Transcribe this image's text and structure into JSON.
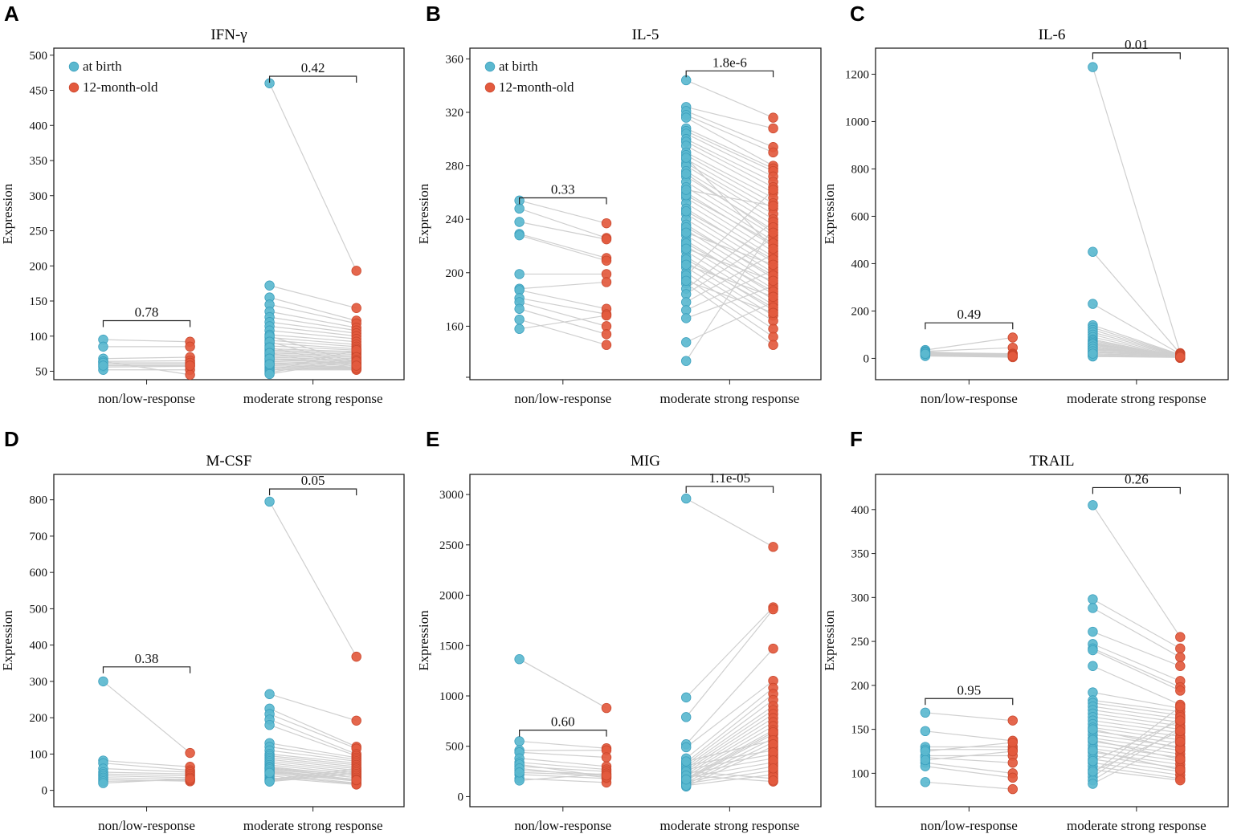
{
  "figure": {
    "colors": {
      "birth": "#5bb8cf",
      "birth_edge": "#3a9fbd",
      "month12": "#e35a3e",
      "month12_edge": "#c9462c",
      "line": "#cfcfcf"
    },
    "legend_labels": {
      "birth": "at birth",
      "month12": "12-month-old"
    }
  },
  "chart_data": [
    {
      "panel": "A",
      "type": "scatter",
      "title": "IFN-γ",
      "ylabel": "Expression",
      "ylim": [
        38,
        510
      ],
      "yticks": [
        50,
        100,
        150,
        200,
        250,
        300,
        350,
        400,
        450,
        500
      ],
      "categories": [
        "non/low-response",
        "moderate strong response"
      ],
      "legend": true,
      "axis_break": false,
      "groups": [
        {
          "pvalue": "0.78",
          "bracket_y": 122,
          "at_birth": [
            95,
            85,
            68,
            64,
            60,
            56,
            52,
            64,
            62,
            58
          ],
          "month_12": [
            92,
            85,
            70,
            65,
            60,
            57,
            52,
            45,
            62,
            58
          ]
        },
        {
          "pvalue": "0.42",
          "bracket_y": 470,
          "at_birth": [
            460,
            172,
            155,
            145,
            135,
            127,
            120,
            114,
            108,
            102,
            98,
            94,
            90,
            86,
            82,
            80,
            78,
            76,
            74,
            72,
            70,
            68,
            66,
            64,
            62,
            60,
            58,
            56,
            54,
            52,
            50,
            48,
            46,
            100,
            92,
            84,
            76,
            68,
            60
          ],
          "month_12": [
            193,
            140,
            122,
            118,
            112,
            108,
            104,
            100,
            96,
            92,
            88,
            85,
            82,
            80,
            78,
            76,
            74,
            72,
            70,
            68,
            66,
            64,
            62,
            60,
            58,
            56,
            55,
            54,
            53,
            52,
            80,
            70,
            66,
            62,
            58,
            56,
            54,
            60,
            64,
            58
          ]
        }
      ]
    },
    {
      "panel": "B",
      "type": "scatter",
      "title": "IL-5",
      "ylabel": "Expression",
      "ylim": [
        120,
        368
      ],
      "yticks": [
        160,
        200,
        240,
        280,
        320,
        360
      ],
      "categories": [
        "non/low-response",
        "moderate strong response"
      ],
      "legend": true,
      "axis_break": true,
      "groups": [
        {
          "pvalue": "0.33",
          "bracket_y": 256,
          "at_birth": [
            254,
            248,
            238,
            229,
            228,
            199,
            188,
            187,
            181,
            178,
            173,
            165,
            158
          ],
          "month_12": [
            237,
            226,
            225,
            211,
            209,
            199,
            193,
            173,
            169,
            160,
            154,
            146,
            168
          ]
        },
        {
          "pvalue": "1.8e-6",
          "bracket_y": 351,
          "at_birth": [
            344,
            324,
            321,
            318,
            316,
            308,
            306,
            304,
            300,
            298,
            295,
            290,
            288,
            285,
            282,
            280,
            276,
            272,
            268,
            264,
            260,
            256,
            252,
            248,
            244,
            240,
            236,
            232,
            228,
            224,
            220,
            216,
            212,
            208,
            204,
            200,
            196,
            192,
            188,
            184,
            178,
            172,
            166,
            148,
            134,
            258,
            246,
            234,
            222,
            210,
            198,
            262,
            274,
            286,
            230,
            218,
            206,
            194
          ],
          "month_12": [
            316,
            308,
            294,
            290,
            280,
            278,
            276,
            272,
            268,
            264,
            260,
            256,
            252,
            248,
            244,
            240,
            236,
            232,
            228,
            224,
            220,
            216,
            212,
            208,
            204,
            200,
            196,
            192,
            188,
            184,
            180,
            176,
            172,
            168,
            164,
            158,
            152,
            146,
            238,
            226,
            214,
            202,
            190,
            178,
            234,
            222,
            210,
            198,
            186,
            174,
            262,
            250,
            230,
            218,
            206,
            194,
            182,
            170
          ]
        }
      ]
    },
    {
      "panel": "C",
      "type": "scatter",
      "title": "IL-6",
      "ylabel": "Expression",
      "ylim": [
        -90,
        1310
      ],
      "yticks": [
        0,
        200,
        400,
        600,
        800,
        1000,
        1200
      ],
      "categories": [
        "non/low-response",
        "moderate strong response"
      ],
      "legend": false,
      "axis_break": false,
      "groups": [
        {
          "pvalue": "0.49",
          "bracket_y": 150,
          "at_birth": [
            35,
            30,
            25,
            22,
            20,
            18,
            15,
            12,
            10,
            28,
            24,
            19
          ],
          "month_12": [
            88,
            45,
            20,
            18,
            15,
            12,
            10,
            8,
            5,
            14,
            11,
            9
          ]
        },
        {
          "pvalue": "0.01",
          "bracket_y": 1290,
          "at_birth": [
            1230,
            450,
            230,
            140,
            130,
            120,
            110,
            100,
            90,
            80,
            75,
            70,
            65,
            60,
            55,
            50,
            45,
            40,
            35,
            30,
            25,
            20,
            15,
            10,
            8,
            60,
            50,
            40,
            30,
            20
          ],
          "month_12": [
            22,
            20,
            18,
            16,
            14,
            12,
            10,
            8,
            6,
            5,
            4,
            3,
            2,
            15,
            12,
            10,
            8,
            6,
            18,
            14,
            11,
            9,
            7,
            5,
            4,
            3,
            2,
            13,
            9,
            6
          ]
        }
      ]
    },
    {
      "panel": "D",
      "type": "scatter",
      "title": "M-CSF",
      "ylabel": "Expression",
      "ylim": [
        -45,
        870
      ],
      "yticks": [
        0,
        100,
        200,
        300,
        400,
        500,
        600,
        700,
        800
      ],
      "categories": [
        "non/low-response",
        "moderate strong response"
      ],
      "legend": false,
      "axis_break": false,
      "groups": [
        {
          "pvalue": "0.38",
          "bracket_y": 340,
          "at_birth": [
            300,
            82,
            75,
            60,
            50,
            45,
            40,
            35,
            30,
            25,
            20
          ],
          "month_12": [
            103,
            65,
            55,
            50,
            45,
            40,
            35,
            30,
            25,
            28,
            32
          ]
        },
        {
          "pvalue": "0.05",
          "bracket_y": 830,
          "at_birth": [
            795,
            265,
            225,
            210,
            195,
            180,
            130,
            120,
            110,
            100,
            95,
            90,
            85,
            80,
            75,
            70,
            65,
            60,
            55,
            50,
            45,
            40,
            35,
            30,
            28,
            26,
            24,
            62,
            58,
            52,
            48
          ],
          "month_12": [
            368,
            192,
            120,
            115,
            100,
            95,
            90,
            85,
            80,
            75,
            70,
            65,
            60,
            55,
            50,
            45,
            40,
            35,
            30,
            25,
            20,
            18,
            16,
            60,
            55,
            50,
            45,
            40,
            35,
            30,
            28
          ]
        }
      ]
    },
    {
      "panel": "E",
      "type": "scatter",
      "title": "MIG",
      "ylabel": "Expression",
      "ylim": [
        -100,
        3200
      ],
      "yticks": [
        0,
        500,
        1000,
        1500,
        2000,
        2500,
        3000
      ],
      "categories": [
        "non/low-response",
        "moderate strong response"
      ],
      "legend": false,
      "axis_break": false,
      "groups": [
        {
          "pvalue": "0.60",
          "bracket_y": 660,
          "at_birth": [
            1365,
            550,
            460,
            440,
            380,
            340,
            300,
            260,
            220,
            180,
            160,
            320,
            280,
            240
          ],
          "month_12": [
            880,
            480,
            460,
            390,
            300,
            270,
            250,
            220,
            180,
            140,
            230,
            200,
            190,
            210
          ]
        },
        {
          "pvalue": "1.1e-05",
          "bracket_y": 3080,
          "at_birth": [
            2960,
            985,
            790,
            520,
            490,
            380,
            340,
            320,
            300,
            280,
            260,
            240,
            220,
            200,
            180,
            160,
            140,
            120,
            100,
            310,
            270,
            230,
            190,
            150,
            130,
            110,
            250,
            210,
            170,
            350
          ],
          "month_12": [
            2480,
            1880,
            1860,
            1470,
            1150,
            1080,
            1020,
            960,
            900,
            860,
            820,
            780,
            740,
            700,
            660,
            620,
            580,
            540,
            500,
            460,
            420,
            380,
            340,
            300,
            260,
            220,
            180,
            150,
            640,
            560,
            480,
            400,
            320,
            240,
            200,
            520,
            440,
            360,
            280,
            160
          ]
        }
      ]
    },
    {
      "panel": "F",
      "type": "scatter",
      "title": "TRAIL",
      "ylabel": "Expression",
      "ylim": [
        62,
        440
      ],
      "yticks": [
        100,
        150,
        200,
        250,
        300,
        350,
        400
      ],
      "categories": [
        "non/low-response",
        "moderate strong response"
      ],
      "legend": false,
      "axis_break": false,
      "groups": [
        {
          "pvalue": "0.95",
          "bracket_y": 185,
          "at_birth": [
            169,
            148,
            130,
            127,
            120,
            118,
            112,
            108,
            90,
            125,
            115
          ],
          "month_12": [
            160,
            137,
            130,
            127,
            120,
            112,
            100,
            95,
            82,
            135,
            125
          ]
        },
        {
          "pvalue": "0.26",
          "bracket_y": 425,
          "at_birth": [
            405,
            298,
            288,
            261,
            247,
            242,
            240,
            222,
            192,
            183,
            180,
            176,
            172,
            168,
            164,
            160,
            156,
            152,
            148,
            144,
            140,
            136,
            132,
            128,
            124,
            120,
            116,
            112,
            108,
            104,
            100,
            96,
            92,
            88,
            150,
            138,
            126,
            114,
            102
          ],
          "month_12": [
            255,
            242,
            232,
            222,
            205,
            198,
            194,
            178,
            174,
            170,
            166,
            162,
            158,
            154,
            150,
            146,
            142,
            138,
            134,
            130,
            126,
            122,
            118,
            114,
            110,
            106,
            102,
            98,
            94,
            92,
            176,
            164,
            152,
            140,
            128,
            116,
            104,
            160,
            148,
            136
          ]
        }
      ]
    }
  ]
}
